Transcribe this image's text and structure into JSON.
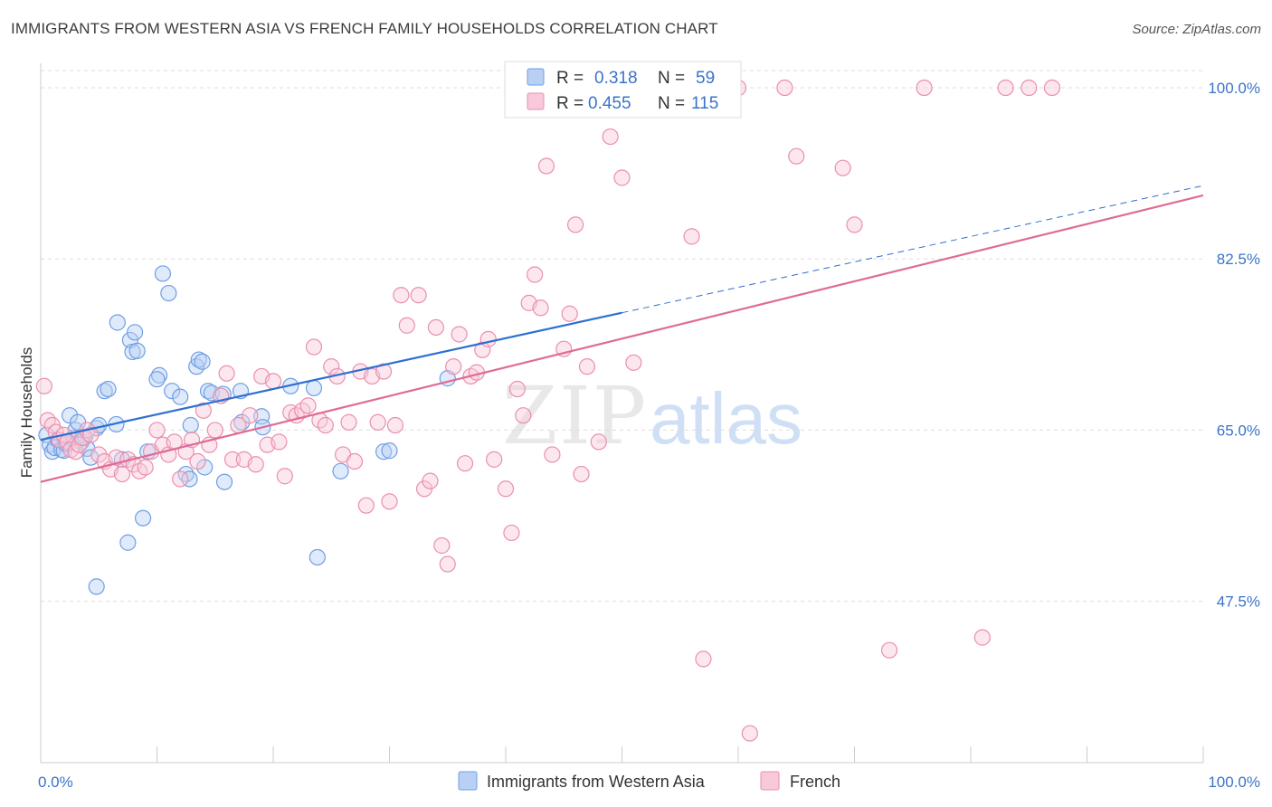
{
  "header": {
    "title": "IMMIGRANTS FROM WESTERN ASIA VS FRENCH FAMILY HOUSEHOLDS CORRELATION CHART",
    "source": "Source: ZipAtlas.com"
  },
  "watermark": {
    "zip": "ZIP",
    "atlas": "atlas"
  },
  "stats": [
    {
      "r_label": "R =",
      "r_value": "0.318",
      "n_label": "N =",
      "n_value": "59",
      "color": "#5b8fe0",
      "fill": "#a9c6f2"
    },
    {
      "r_label": "R =",
      "r_value": "0.455",
      "n_label": "N =",
      "n_value": "115",
      "color": "#e87aa0",
      "fill": "#f7bfd3"
    }
  ],
  "colors": {
    "blue_stroke": "#6f9ee6",
    "blue_fill": "#b9d0f5",
    "blue_line": "#2e6fd1",
    "pink_stroke": "#ea8fae",
    "pink_fill": "#f8c9da",
    "pink_line": "#e06a96",
    "grid": "#dddddd",
    "axis_text": "#3a73c8"
  },
  "chart_data": {
    "type": "scatter",
    "title": "IMMIGRANTS FROM WESTERN ASIA VS FRENCH FAMILY HOUSEHOLDS CORRELATION CHART",
    "xlabel": "",
    "ylabel": "Family Households",
    "xlim": [
      0,
      100
    ],
    "ylim": [
      31.0,
      102.5
    ],
    "x_tick_labels": [
      "0.0%",
      "100.0%"
    ],
    "y_ticks": [
      47.5,
      65.0,
      82.5,
      100.0
    ],
    "y_tick_labels": [
      "47.5%",
      "65.0%",
      "82.5%",
      "100.0%"
    ],
    "grid": true,
    "legend_position": "bottom-center",
    "series": [
      {
        "name": "Immigrants from Western Asia",
        "color": "#6f9ee6",
        "trend": {
          "x0": 0,
          "y0": 64.0,
          "x1": 50,
          "y1": 77.0,
          "dashed_to_x": 100,
          "dashed_to_y": 90.0
        },
        "points": [
          [
            0.5,
            64.5
          ],
          [
            0.8,
            63.5
          ],
          [
            1.0,
            62.8
          ],
          [
            1.2,
            63.2
          ],
          [
            1.5,
            64.0
          ],
          [
            1.8,
            63.0
          ],
          [
            2.0,
            62.9
          ],
          [
            2.2,
            63.6
          ],
          [
            2.5,
            66.5
          ],
          [
            2.8,
            64.2
          ],
          [
            3.0,
            65.0
          ],
          [
            3.2,
            65.8
          ],
          [
            3.5,
            63.8
          ],
          [
            3.8,
            64.3
          ],
          [
            4.0,
            63.1
          ],
          [
            4.3,
            62.2
          ],
          [
            4.8,
            65.2
          ],
          [
            5.0,
            65.5
          ],
          [
            5.5,
            69.0
          ],
          [
            5.8,
            69.2
          ],
          [
            6.5,
            65.6
          ],
          [
            6.6,
            76.0
          ],
          [
            7.0,
            62.0
          ],
          [
            7.5,
            53.5
          ],
          [
            7.7,
            74.2
          ],
          [
            7.9,
            73.0
          ],
          [
            8.1,
            75.0
          ],
          [
            8.3,
            73.1
          ],
          [
            8.8,
            56.0
          ],
          [
            9.2,
            62.8
          ],
          [
            10.5,
            81.0
          ],
          [
            10.2,
            70.6
          ],
          [
            10.0,
            70.2
          ],
          [
            11.0,
            79.0
          ],
          [
            11.3,
            69.0
          ],
          [
            12.0,
            68.4
          ],
          [
            12.5,
            60.5
          ],
          [
            12.8,
            60.0
          ],
          [
            12.9,
            65.5
          ],
          [
            13.4,
            71.5
          ],
          [
            13.6,
            72.2
          ],
          [
            13.9,
            72.0
          ],
          [
            14.1,
            61.2
          ],
          [
            14.4,
            69.0
          ],
          [
            14.7,
            68.8
          ],
          [
            15.7,
            68.7
          ],
          [
            15.8,
            59.7
          ],
          [
            17.3,
            65.8
          ],
          [
            17.2,
            69.0
          ],
          [
            19.0,
            66.4
          ],
          [
            19.1,
            65.3
          ],
          [
            21.5,
            69.5
          ],
          [
            23.5,
            69.3
          ],
          [
            23.8,
            52.0
          ],
          [
            25.8,
            60.8
          ],
          [
            29.5,
            62.8
          ],
          [
            30.0,
            62.9
          ],
          [
            35.0,
            70.3
          ],
          [
            4.8,
            49.0
          ]
        ]
      },
      {
        "name": "French",
        "color": "#ea8fae",
        "trend": {
          "x0": 0,
          "y0": 59.7,
          "x1": 100,
          "y1": 89.0
        },
        "points": [
          [
            0.3,
            69.5
          ],
          [
            0.6,
            66.0
          ],
          [
            1.0,
            65.5
          ],
          [
            1.3,
            64.8
          ],
          [
            1.6,
            64.0
          ],
          [
            2.0,
            64.5
          ],
          [
            2.3,
            63.8
          ],
          [
            2.6,
            63.0
          ],
          [
            3.0,
            62.8
          ],
          [
            3.3,
            63.5
          ],
          [
            3.6,
            64.2
          ],
          [
            4.0,
            65.0
          ],
          [
            4.3,
            64.5
          ],
          [
            5.0,
            62.5
          ],
          [
            5.5,
            61.8
          ],
          [
            6.0,
            61.0
          ],
          [
            6.5,
            62.2
          ],
          [
            7.0,
            60.5
          ],
          [
            7.5,
            62.0
          ],
          [
            8.0,
            61.5
          ],
          [
            8.5,
            60.8
          ],
          [
            9.0,
            61.2
          ],
          [
            9.5,
            62.8
          ],
          [
            10.0,
            65.0
          ],
          [
            10.5,
            63.5
          ],
          [
            11.0,
            62.5
          ],
          [
            11.5,
            63.8
          ],
          [
            12.0,
            60.0
          ],
          [
            12.5,
            62.8
          ],
          [
            13.0,
            64.0
          ],
          [
            13.5,
            61.8
          ],
          [
            14.0,
            67.0
          ],
          [
            14.5,
            63.5
          ],
          [
            15.0,
            65.0
          ],
          [
            15.5,
            68.5
          ],
          [
            16.0,
            70.8
          ],
          [
            16.5,
            62.0
          ],
          [
            17.0,
            65.5
          ],
          [
            17.5,
            62.0
          ],
          [
            18.0,
            66.5
          ],
          [
            18.5,
            61.5
          ],
          [
            19.0,
            70.5
          ],
          [
            19.5,
            63.5
          ],
          [
            20.0,
            70.0
          ],
          [
            20.5,
            63.8
          ],
          [
            21.0,
            60.3
          ],
          [
            21.5,
            66.8
          ],
          [
            22.0,
            66.5
          ],
          [
            22.5,
            67.0
          ],
          [
            23.0,
            67.5
          ],
          [
            23.5,
            73.5
          ],
          [
            24.0,
            66.0
          ],
          [
            24.5,
            65.5
          ],
          [
            25.0,
            71.5
          ],
          [
            25.5,
            70.5
          ],
          [
            26.0,
            62.5
          ],
          [
            26.5,
            65.8
          ],
          [
            27.0,
            61.8
          ],
          [
            27.5,
            71.0
          ],
          [
            28.0,
            57.3
          ],
          [
            28.5,
            70.5
          ],
          [
            29.0,
            65.8
          ],
          [
            29.5,
            71.0
          ],
          [
            30.0,
            57.7
          ],
          [
            30.5,
            65.5
          ],
          [
            31.0,
            78.8
          ],
          [
            31.5,
            75.7
          ],
          [
            32.5,
            78.8
          ],
          [
            33.0,
            59.0
          ],
          [
            33.5,
            59.8
          ],
          [
            34.0,
            75.5
          ],
          [
            34.5,
            53.2
          ],
          [
            35.0,
            51.3
          ],
          [
            35.5,
            71.5
          ],
          [
            36.0,
            74.8
          ],
          [
            36.5,
            61.6
          ],
          [
            37.0,
            70.5
          ],
          [
            37.5,
            70.9
          ],
          [
            38.0,
            73.2
          ],
          [
            38.5,
            74.3
          ],
          [
            39.0,
            62.0
          ],
          [
            40.0,
            59.0
          ],
          [
            40.5,
            54.5
          ],
          [
            41.0,
            69.2
          ],
          [
            41.5,
            66.5
          ],
          [
            42.0,
            78.0
          ],
          [
            42.5,
            80.9
          ],
          [
            43.0,
            77.5
          ],
          [
            43.5,
            92.0
          ],
          [
            44.0,
            62.5
          ],
          [
            45.0,
            73.3
          ],
          [
            45.5,
            76.9
          ],
          [
            46.0,
            86.0
          ],
          [
            46.5,
            60.5
          ],
          [
            47.0,
            71.5
          ],
          [
            48.0,
            63.8
          ],
          [
            49.0,
            95.0
          ],
          [
            50.0,
            90.8
          ],
          [
            51.0,
            71.9
          ],
          [
            52.0,
            100.0
          ],
          [
            53.0,
            100.0
          ],
          [
            56.0,
            84.8
          ],
          [
            57.0,
            41.6
          ],
          [
            60.0,
            100.0
          ],
          [
            61.0,
            34.0
          ],
          [
            64.0,
            100.0
          ],
          [
            65.0,
            93.0
          ],
          [
            69.0,
            91.8
          ],
          [
            70.0,
            86.0
          ],
          [
            73.0,
            42.5
          ],
          [
            76.0,
            100.0
          ],
          [
            81.0,
            43.8
          ],
          [
            83.0,
            100.0
          ],
          [
            85.0,
            100.0
          ],
          [
            87.0,
            100.0
          ]
        ]
      }
    ]
  },
  "legend": {
    "items": [
      {
        "label": "Immigrants from Western Asia"
      },
      {
        "label": "French"
      }
    ]
  }
}
